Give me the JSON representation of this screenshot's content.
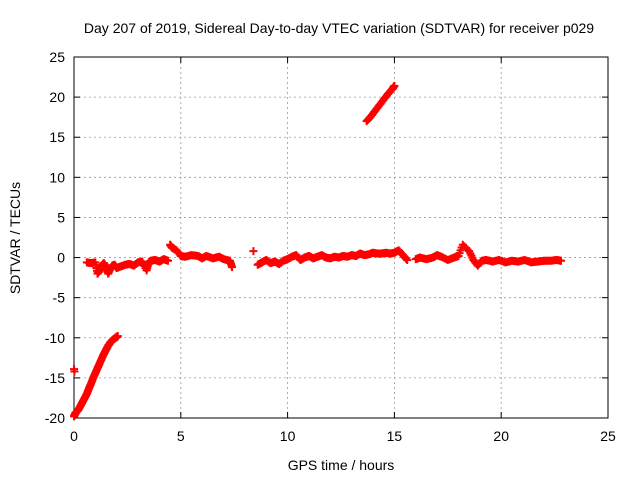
{
  "chart_data": {
    "type": "scatter",
    "title": "Day 207 of 2019, Sidereal Day-to-day VTEC variation (SDTVAR) for receiver p029",
    "xlabel": "GPS time / hours",
    "ylabel": "SDTVAR / TECUs",
    "xlim": [
      0,
      25
    ],
    "ylim": [
      -20,
      25
    ],
    "xticks": [
      0,
      5,
      10,
      15,
      20,
      25
    ],
    "yticks": [
      -20,
      -15,
      -10,
      -5,
      0,
      5,
      10,
      15,
      20,
      25
    ],
    "grid": true,
    "marker": "+",
    "color": "#ff0000",
    "series": [
      {
        "name": "SDTVAR",
        "x": [
          0.0,
          0.05,
          0.1,
          0.2,
          0.3,
          0.4,
          0.5,
          0.6,
          0.7,
          0.8,
          0.9,
          1.0,
          1.1,
          1.2,
          1.3,
          1.4,
          1.5,
          1.6,
          1.7,
          1.8,
          1.9,
          2.0,
          2.05,
          0.6,
          0.8,
          1.0,
          1.1,
          1.2,
          1.3,
          1.4,
          1.5,
          1.6,
          1.7,
          1.8,
          1.9,
          2.0,
          2.2,
          2.4,
          2.6,
          2.8,
          3.0,
          3.2,
          3.4,
          3.5,
          3.6,
          3.8,
          4.0,
          4.2,
          4.4,
          4.5,
          4.6,
          4.8,
          5.0,
          5.2,
          5.5,
          5.8,
          6.0,
          6.2,
          6.5,
          6.8,
          7.0,
          7.3,
          7.4,
          8.4,
          8.6,
          8.8,
          9.0,
          9.2,
          9.4,
          9.6,
          9.8,
          10.0,
          10.2,
          10.4,
          10.6,
          10.8,
          11.0,
          11.2,
          11.4,
          11.6,
          11.8,
          12.0,
          12.2,
          12.4,
          12.6,
          12.8,
          13.0,
          13.2,
          13.4,
          13.6,
          13.8,
          14.0,
          14.2,
          14.4,
          14.6,
          14.8,
          15.0,
          15.2,
          15.4,
          15.6,
          13.7,
          13.9,
          14.1,
          14.3,
          14.5,
          14.7,
          14.9,
          15.0,
          16.0,
          16.2,
          16.5,
          16.8,
          17.0,
          17.2,
          17.5,
          17.8,
          18.0,
          18.2,
          18.5,
          18.7,
          18.9,
          19.1,
          19.3,
          19.6,
          19.9,
          20.2,
          20.5,
          20.8,
          21.1,
          21.4,
          21.7,
          22.0,
          22.3,
          22.6,
          22.8
        ],
        "y": [
          -19.8,
          -19.5,
          -19.3,
          -19.0,
          -18.5,
          -18.0,
          -17.5,
          -17.0,
          -16.3,
          -15.7,
          -15.0,
          -14.4,
          -13.8,
          -13.2,
          -12.6,
          -12.0,
          -11.5,
          -11.0,
          -10.6,
          -10.3,
          -10.1,
          -9.9,
          -9.8,
          -0.6,
          -0.7,
          -0.6,
          -2.0,
          -1.6,
          -1.0,
          -0.7,
          -1.2,
          -2.0,
          -1.4,
          -1.0,
          -0.9,
          -1.3,
          -1.1,
          -0.9,
          -0.8,
          -1.0,
          -0.6,
          -0.5,
          -1.6,
          -0.6,
          -0.4,
          -0.3,
          -0.5,
          -0.2,
          -0.4,
          1.6,
          1.2,
          0.9,
          0.2,
          0.1,
          0.3,
          0.2,
          -0.1,
          0.2,
          -0.1,
          0.1,
          -0.2,
          -0.4,
          -1.2,
          0.8,
          -0.9,
          -0.6,
          -0.3,
          -0.7,
          -0.5,
          -0.8,
          -0.4,
          -0.2,
          0.1,
          0.3,
          -0.3,
          0.0,
          0.2,
          -0.1,
          0.1,
          0.3,
          0.0,
          -0.1,
          0.1,
          0.0,
          0.2,
          0.1,
          0.3,
          0.2,
          0.5,
          0.3,
          0.4,
          0.6,
          0.5,
          0.5,
          0.6,
          0.5,
          0.6,
          0.9,
          0.3,
          -0.3,
          17.0,
          17.6,
          18.3,
          19.0,
          19.7,
          20.4,
          21.0,
          21.4,
          -0.2,
          0.0,
          -0.2,
          0.0,
          0.3,
          0.1,
          -0.3,
          0.0,
          0.2,
          1.6,
          0.8,
          -0.3,
          -1.0,
          -0.4,
          -0.3,
          -0.5,
          -0.3,
          -0.6,
          -0.4,
          -0.5,
          -0.3,
          -0.6,
          -0.5,
          -0.4,
          -0.4,
          -0.3,
          -0.4
        ]
      }
    ],
    "extra_points": [
      {
        "x": 0.0,
        "y": -13.9
      },
      {
        "x": 0.02,
        "y": -14.2
      }
    ]
  }
}
